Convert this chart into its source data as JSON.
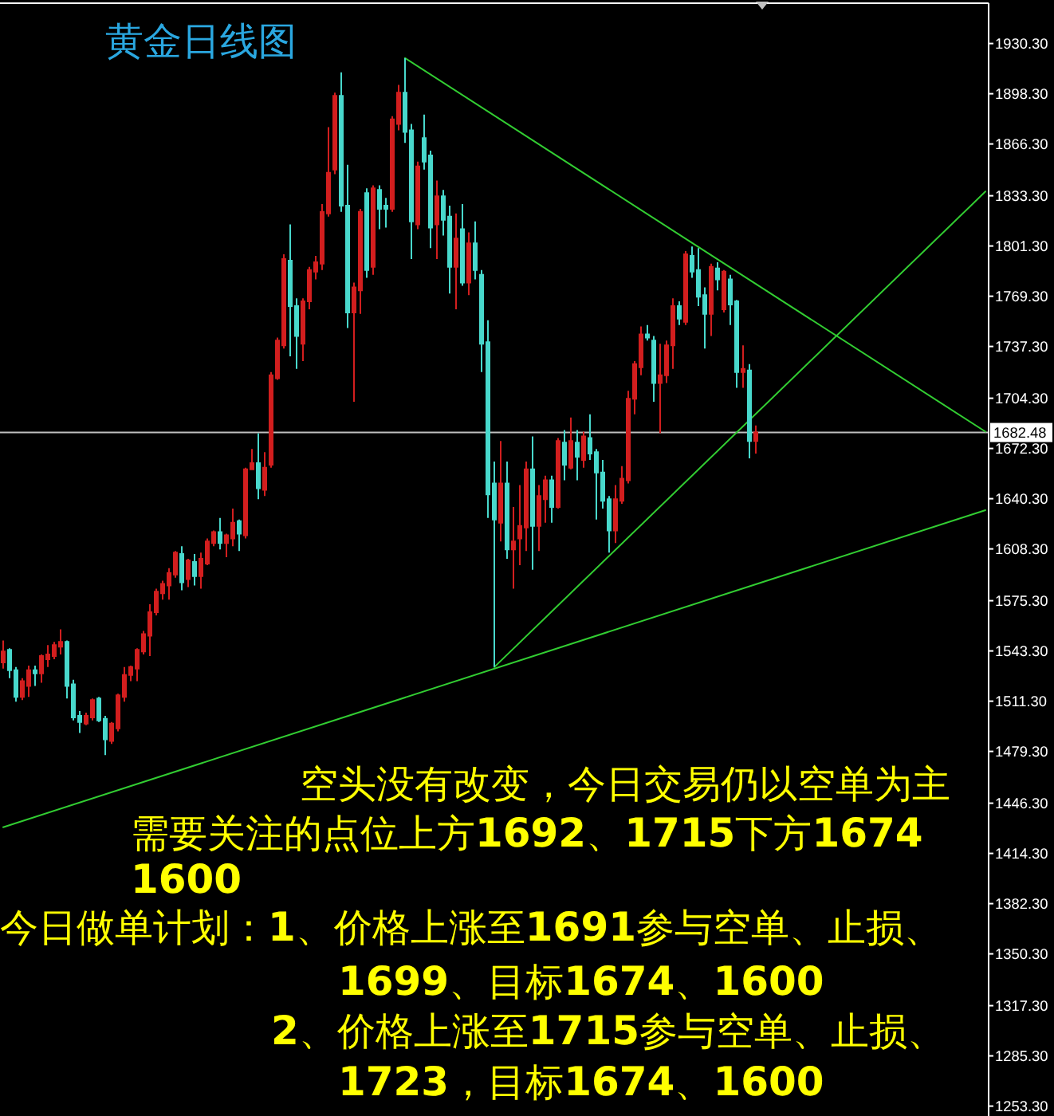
{
  "chart_data": {
    "type": "candlestick",
    "title": "黄金日线图",
    "categories": [
      null,
      null,
      null,
      null,
      null,
      null,
      null,
      null,
      null,
      null,
      null,
      null,
      null,
      null,
      null,
      null,
      null,
      null,
      null,
      null,
      null,
      null,
      null,
      null,
      null,
      null,
      null,
      null,
      null,
      null,
      null,
      null,
      null,
      null,
      null,
      null,
      null,
      null,
      null,
      null,
      null,
      null,
      null,
      null,
      null,
      null,
      null,
      null,
      null,
      null,
      null,
      null,
      null,
      null,
      null,
      null,
      null,
      null,
      null,
      null,
      null,
      null,
      null,
      null,
      null,
      null,
      null,
      null,
      null,
      null,
      null,
      null,
      null,
      null,
      null,
      null,
      null,
      null,
      null,
      null,
      null,
      null,
      null,
      null,
      null,
      null,
      null,
      null,
      null,
      null,
      null,
      null,
      null,
      null,
      null,
      null,
      null,
      null,
      null,
      null,
      null,
      null,
      null,
      null,
      null,
      null,
      null,
      null,
      null,
      null,
      null,
      null,
      null,
      null,
      null,
      null,
      null,
      null,
      null,
      null,
      null,
      null,
      null,
      null,
      null,
      null,
      null,
      null,
      null,
      null,
      null,
      null,
      null,
      null,
      null,
      null,
      null,
      null,
      null,
      null,
      null,
      null,
      null,
      null,
      null,
      null,
      null,
      null,
      null,
      null,
      null,
      null,
      null,
      null,
      null
    ],
    "ohlc": [
      [
        1536,
        1550,
        1532,
        1543
      ],
      [
        1544,
        1545,
        1526,
        1531
      ],
      [
        1531,
        1533,
        1511,
        1514
      ],
      [
        1514,
        1526,
        1512,
        1524
      ],
      [
        1521,
        1534,
        1514,
        1531
      ],
      [
        1531,
        1534,
        1521,
        1529
      ],
      [
        1529,
        1541,
        1523,
        1540
      ],
      [
        1538,
        1547,
        1533,
        1541
      ],
      [
        1540,
        1549,
        1538,
        1547
      ],
      [
        1546,
        1557,
        1541,
        1549
      ],
      [
        1549,
        1550,
        1513,
        1521
      ],
      [
        1522,
        1525,
        1499,
        1501
      ],
      [
        1502,
        1505,
        1491,
        1498
      ],
      [
        1497,
        1504,
        1496,
        1502
      ],
      [
        1501,
        1513,
        1499,
        1512
      ],
      [
        1513,
        1514,
        1498,
        1499
      ],
      [
        1500,
        1502,
        1477,
        1487
      ],
      [
        1486,
        1498,
        1484,
        1497
      ],
      [
        1494,
        1516,
        1492,
        1515
      ],
      [
        1514,
        1533,
        1511,
        1528
      ],
      [
        1528,
        1534,
        1524,
        1533
      ],
      [
        1532,
        1545,
        1524,
        1544
      ],
      [
        1543,
        1556,
        1541,
        1554
      ],
      [
        1553,
        1573,
        1540,
        1568
      ],
      [
        1568,
        1583,
        1566,
        1581
      ],
      [
        1580,
        1588,
        1576,
        1586
      ],
      [
        1585,
        1596,
        1576,
        1593
      ],
      [
        1592,
        1607,
        1590,
        1606
      ],
      [
        1605,
        1610,
        1582,
        1587
      ],
      [
        1589,
        1602,
        1584,
        1601
      ],
      [
        1600,
        1605,
        1585,
        1591
      ],
      [
        1591,
        1606,
        1583,
        1602
      ],
      [
        1599,
        1615,
        1598,
        1613
      ],
      [
        1612,
        1620,
        1610,
        1619
      ],
      [
        1619,
        1628,
        1608,
        1612
      ],
      [
        1612,
        1618,
        1603,
        1617
      ],
      [
        1615,
        1634,
        1610,
        1625
      ],
      [
        1626,
        1627,
        1607,
        1618
      ],
      [
        1617,
        1660,
        1615,
        1659
      ],
      [
        1659,
        1672,
        1659,
        1663
      ],
      [
        1663,
        1682,
        1640,
        1647
      ],
      [
        1646,
        1670,
        1642,
        1660
      ],
      [
        1662,
        1721,
        1660,
        1719
      ],
      [
        1717,
        1743,
        1716,
        1741
      ],
      [
        1738,
        1796,
        1736,
        1793
      ],
      [
        1792,
        1815,
        1731,
        1763
      ],
      [
        1763,
        1768,
        1723,
        1744
      ],
      [
        1739,
        1768,
        1728,
        1766
      ],
      [
        1766,
        1788,
        1761,
        1786
      ],
      [
        1785,
        1795,
        1780,
        1791
      ],
      [
        1790,
        1828,
        1786,
        1823
      ],
      [
        1822,
        1877,
        1820,
        1848
      ],
      [
        1850,
        1899,
        1847,
        1897
      ],
      [
        1897,
        1912,
        1823,
        1827
      ],
      [
        1827,
        1853,
        1749,
        1759
      ],
      [
        1759,
        1778,
        1702,
        1775
      ],
      [
        1773,
        1825,
        1758,
        1823
      ],
      [
        1835,
        1838,
        1781,
        1786
      ],
      [
        1788,
        1840,
        1783,
        1838
      ],
      [
        1837,
        1840,
        1812,
        1825
      ],
      [
        1827,
        1832,
        1813,
        1825
      ],
      [
        1825,
        1884,
        1823,
        1882
      ],
      [
        1879,
        1904,
        1875,
        1899
      ],
      [
        1899,
        1921,
        1867,
        1874
      ],
      [
        1875,
        1879,
        1793,
        1817
      ],
      [
        1815,
        1855,
        1812,
        1852
      ],
      [
        1870,
        1885,
        1850,
        1855
      ],
      [
        1859,
        1862,
        1800,
        1813
      ],
      [
        1815,
        1843,
        1793,
        1833
      ],
      [
        1833,
        1837,
        1808,
        1818
      ],
      [
        1820,
        1827,
        1771,
        1788
      ],
      [
        1788,
        1822,
        1761,
        1806
      ],
      [
        1812,
        1828,
        1776,
        1778
      ],
      [
        1778,
        1810,
        1770,
        1803
      ],
      [
        1803,
        1817,
        1780,
        1786
      ],
      [
        1783,
        1786,
        1721,
        1739
      ],
      [
        1740,
        1754,
        1628,
        1643
      ],
      [
        1650,
        1664,
        1533,
        1627
      ],
      [
        1625,
        1677,
        1613,
        1650
      ],
      [
        1650,
        1664,
        1602,
        1608
      ],
      [
        1608,
        1635,
        1583,
        1613
      ],
      [
        1615,
        1649,
        1598,
        1623
      ],
      [
        1622,
        1664,
        1607,
        1659
      ],
      [
        1659,
        1680,
        1595,
        1623
      ],
      [
        1623,
        1649,
        1607,
        1642
      ],
      [
        1640,
        1655,
        1625,
        1652
      ],
      [
        1652,
        1655,
        1625,
        1635
      ],
      [
        1635,
        1679,
        1634,
        1677
      ],
      [
        1676,
        1684,
        1652,
        1662
      ],
      [
        1660,
        1692,
        1659,
        1677
      ],
      [
        1676,
        1684,
        1652,
        1667
      ],
      [
        1665,
        1683,
        1660,
        1680
      ],
      [
        1679,
        1694,
        1665,
        1669
      ],
      [
        1670,
        1672,
        1627,
        1657
      ],
      [
        1657,
        1665,
        1634,
        1639
      ],
      [
        1640,
        1642,
        1606,
        1620
      ],
      [
        1620,
        1649,
        1612,
        1640
      ],
      [
        1639,
        1661,
        1637,
        1653
      ],
      [
        1652,
        1709,
        1650,
        1704
      ],
      [
        1704,
        1728,
        1694,
        1726
      ],
      [
        1724,
        1750,
        1719,
        1745
      ],
      [
        1745,
        1751,
        1741,
        1743
      ],
      [
        1741,
        1744,
        1702,
        1714
      ],
      [
        1714,
        1739,
        1682,
        1719
      ],
      [
        1719,
        1741,
        1714,
        1738
      ],
      [
        1738,
        1768,
        1723,
        1763
      ],
      [
        1763,
        1766,
        1751,
        1755
      ],
      [
        1753,
        1798,
        1751,
        1796
      ],
      [
        1795,
        1801,
        1781,
        1785
      ],
      [
        1786,
        1800,
        1763,
        1769
      ],
      [
        1770,
        1775,
        1736,
        1758
      ],
      [
        1758,
        1790,
        1744,
        1788
      ],
      [
        1787,
        1791,
        1773,
        1780
      ],
      [
        1761,
        1786,
        1759,
        1785
      ],
      [
        1780,
        1783,
        1751,
        1764
      ],
      [
        1766,
        1767,
        1711,
        1721
      ],
      [
        1721,
        1738,
        1711,
        1723
      ],
      [
        1722,
        1726,
        1666,
        1677
      ],
      [
        1677,
        1687,
        1669,
        1682.48
      ],
      null,
      null,
      null,
      null,
      null,
      null,
      null,
      null,
      null,
      null,
      null,
      null,
      null,
      null,
      null,
      null,
      null,
      null,
      null,
      null,
      null,
      null,
      null,
      null,
      null,
      null,
      null,
      null,
      null,
      null,
      null,
      null,
      null,
      null,
      null,
      null
    ],
    "colors": [
      "#d21e1e",
      "#48d8cc",
      "#48d8cc",
      "#d21e1e",
      "#d21e1e",
      "#48d8cc",
      "#d21e1e",
      "#d21e1e",
      "#d21e1e",
      "#d21e1e",
      "#48d8cc",
      "#48d8cc",
      "#48d8cc",
      "#d21e1e",
      "#d21e1e",
      "#48d8cc",
      "#48d8cc",
      "#d21e1e",
      "#d21e1e",
      "#d21e1e",
      "#d21e1e",
      "#d21e1e",
      "#d21e1e",
      "#d21e1e",
      "#d21e1e",
      "#d21e1e",
      "#d21e1e",
      "#d21e1e",
      "#48d8cc",
      "#d21e1e",
      "#48d8cc",
      "#d21e1e",
      "#d21e1e",
      "#d21e1e",
      "#48d8cc",
      "#d21e1e",
      "#d21e1e",
      "#48d8cc",
      "#d21e1e",
      "#d21e1e",
      "#48d8cc",
      "#d21e1e",
      "#d21e1e",
      "#d21e1e",
      "#d21e1e",
      "#48d8cc",
      "#48d8cc",
      "#d21e1e",
      "#d21e1e",
      "#d21e1e",
      "#d21e1e",
      "#d21e1e",
      "#d21e1e",
      "#48d8cc",
      "#48d8cc",
      "#d21e1e",
      "#d21e1e",
      "#48d8cc",
      "#d21e1e",
      "#48d8cc",
      "#48d8cc",
      "#d21e1e",
      "#d21e1e",
      "#48d8cc",
      "#48d8cc",
      "#d21e1e",
      "#48d8cc",
      "#48d8cc",
      "#d21e1e",
      "#48d8cc",
      "#48d8cc",
      "#d21e1e",
      "#48d8cc",
      "#d21e1e",
      "#48d8cc",
      "#48d8cc",
      "#48d8cc",
      "#48d8cc",
      "#d21e1e",
      "#48d8cc",
      "#d21e1e",
      "#d21e1e",
      "#d21e1e",
      "#48d8cc",
      "#d21e1e",
      "#d21e1e",
      "#48d8cc",
      "#d21e1e",
      "#48d8cc",
      "#d21e1e",
      "#48d8cc",
      "#d21e1e",
      "#48d8cc",
      "#48d8cc",
      "#48d8cc",
      "#48d8cc",
      "#d21e1e",
      "#d21e1e",
      "#d21e1e",
      "#d21e1e",
      "#d21e1e",
      "#48d8cc",
      "#48d8cc",
      "#d21e1e",
      "#d21e1e",
      "#d21e1e",
      "#48d8cc",
      "#d21e1e",
      "#48d8cc",
      "#48d8cc",
      "#48d8cc",
      "#d21e1e",
      "#48d8cc",
      "#d21e1e",
      "#48d8cc",
      "#48d8cc",
      "#d21e1e",
      "#48d8cc",
      "#d21e1e",
      null,
      null,
      null,
      null,
      null,
      null,
      null,
      null,
      null,
      null,
      null,
      null,
      null,
      null,
      null,
      null,
      null,
      null,
      null,
      null,
      null,
      null,
      null,
      null,
      null,
      null,
      null,
      null,
      null,
      null,
      null,
      null,
      null,
      null,
      null,
      null
    ],
    "series": [
      {
        "type": "line",
        "color": "#32cd32",
        "values": [
          1431,
          null,
          null,
          null,
          null,
          null,
          null,
          null,
          null,
          null,
          null,
          null,
          null,
          null,
          null,
          null,
          null,
          null,
          null,
          null,
          null,
          null,
          null,
          null,
          null,
          null,
          null,
          null,
          null,
          null,
          null,
          null,
          null,
          null,
          null,
          null,
          null,
          null,
          null,
          null,
          null,
          null,
          null,
          null,
          null,
          null,
          null,
          null,
          null,
          null,
          null,
          null,
          null,
          null,
          null,
          null,
          null,
          null,
          null,
          null,
          null,
          null,
          null,
          null,
          null,
          null,
          null,
          null,
          null,
          null,
          null,
          null,
          null,
          null,
          null,
          null,
          null,
          null,
          null,
          null,
          null,
          null,
          null,
          null,
          null,
          null,
          null,
          null,
          null,
          null,
          null,
          null,
          null,
          null,
          null,
          null,
          null,
          null,
          null,
          null,
          null,
          null,
          null,
          null,
          null,
          null,
          null,
          null,
          null,
          null,
          null,
          null,
          null,
          null,
          null,
          null,
          null,
          null,
          null,
          null,
          null,
          null,
          null,
          null,
          null,
          null,
          null,
          null,
          null,
          null,
          null,
          null,
          null,
          null,
          null,
          null,
          null,
          null,
          null,
          null,
          null,
          null,
          null,
          null,
          null,
          null,
          null,
          null,
          null,
          null,
          null,
          null,
          null,
          null,
          1633
        ]
      },
      {
        "type": "line",
        "color": "#32cd32",
        "values": [
          null,
          null,
          null,
          null,
          null,
          null,
          null,
          null,
          null,
          null,
          null,
          null,
          null,
          null,
          null,
          null,
          null,
          null,
          null,
          null,
          null,
          null,
          null,
          null,
          null,
          null,
          null,
          null,
          null,
          null,
          null,
          null,
          null,
          null,
          null,
          null,
          null,
          null,
          null,
          null,
          null,
          null,
          null,
          null,
          null,
          null,
          null,
          null,
          null,
          null,
          null,
          null,
          null,
          null,
          null,
          null,
          null,
          null,
          null,
          null,
          null,
          null,
          null,
          1921,
          null,
          null,
          null,
          null,
          null,
          null,
          null,
          null,
          null,
          null,
          null,
          null,
          null,
          null,
          null,
          null,
          null,
          null,
          null,
          null,
          null,
          null,
          null,
          null,
          null,
          null,
          null,
          null,
          null,
          null,
          null,
          null,
          null,
          null,
          null,
          null,
          null,
          null,
          null,
          null,
          null,
          null,
          null,
          null,
          null,
          null,
          null,
          null,
          null,
          null,
          null,
          null,
          null,
          null,
          null,
          null,
          null,
          null,
          null,
          null,
          null,
          null,
          null,
          null,
          null,
          null,
          null,
          null,
          null,
          null,
          null,
          null,
          null,
          null,
          null,
          null,
          null,
          null,
          null,
          null,
          null,
          null,
          null,
          null,
          null,
          null,
          null,
          null,
          null,
          null,
          1683
        ]
      },
      {
        "type": "line",
        "color": "#32cd32",
        "values": [
          null,
          null,
          null,
          null,
          null,
          null,
          null,
          null,
          null,
          null,
          null,
          null,
          null,
          null,
          null,
          null,
          null,
          null,
          null,
          null,
          null,
          null,
          null,
          null,
          null,
          null,
          null,
          null,
          null,
          null,
          null,
          null,
          null,
          null,
          null,
          null,
          null,
          null,
          null,
          null,
          null,
          null,
          null,
          null,
          null,
          null,
          null,
          null,
          null,
          null,
          null,
          null,
          null,
          null,
          null,
          null,
          null,
          null,
          null,
          null,
          null,
          null,
          null,
          null,
          null,
          null,
          null,
          null,
          null,
          null,
          null,
          null,
          null,
          null,
          null,
          null,
          null,
          1533,
          null,
          null,
          null,
          null,
          null,
          null,
          null,
          null,
          null,
          null,
          null,
          null,
          null,
          null,
          null,
          null,
          null,
          null,
          null,
          null,
          null,
          null,
          null,
          null,
          null,
          null,
          null,
          null,
          null,
          null,
          null,
          null,
          null,
          null,
          null,
          null,
          null,
          null,
          null,
          null,
          null,
          null,
          null,
          null,
          null,
          null,
          null,
          null,
          null,
          null,
          null,
          null,
          null,
          null,
          null,
          null,
          null,
          null,
          null,
          null,
          null,
          null,
          null,
          null,
          null,
          null,
          null,
          null,
          null,
          null,
          null,
          null,
          null,
          null,
          null,
          null,
          1836
        ]
      }
    ],
    "ylim": [
      1247,
      1956
    ],
    "yticks": [
      {
        "value": 1930.3,
        "label": "1930.30"
      },
      {
        "value": 1898.3,
        "label": "1898.30"
      },
      {
        "value": 1866.3,
        "label": "1866.30"
      },
      {
        "value": 1833.3,
        "label": "1833.30"
      },
      {
        "value": 1801.3,
        "label": "1801.30"
      },
      {
        "value": 1769.3,
        "label": "1769.30"
      },
      {
        "value": 1737.3,
        "label": "1737.30"
      },
      {
        "value": 1704.3,
        "label": "1704.30"
      },
      {
        "value": 1672.3,
        "label": "1672.30"
      },
      {
        "value": 1640.3,
        "label": "1640.30"
      },
      {
        "value": 1608.3,
        "label": "1608.30"
      },
      {
        "value": 1575.3,
        "label": "1575.30"
      },
      {
        "value": 1543.3,
        "label": "1543.30"
      },
      {
        "value": 1511.3,
        "label": "1511.30"
      },
      {
        "value": 1479.3,
        "label": "1479.30"
      },
      {
        "value": 1446.3,
        "label": "1446.30"
      },
      {
        "value": 1414.3,
        "label": "1414.30"
      },
      {
        "value": 1382.3,
        "label": "1382.30"
      },
      {
        "value": 1350.3,
        "label": "1350.30"
      },
      {
        "value": 1317.3,
        "label": "1317.30"
      },
      {
        "value": 1285.3,
        "label": "1285.30"
      },
      {
        "value": 1253.3,
        "label": "1253.30"
      }
    ],
    "ref_lines": [
      {
        "axis": "y",
        "value": 1682.48,
        "label": "1682.48",
        "color": "#c0c0c0"
      }
    ],
    "tick_labels": "y",
    "annotations": [
      "空头没有改变，今日交易仍以空单为主",
      "需要关注的点位上方1692、1715下方1674",
      "1600",
      "今日做单计划：1、价格上涨至1691参与空单、止损、",
      "1699、目标1674、1600",
      "2、价格上涨至1715参与空单、止损、",
      "1723，目标1674、1600"
    ]
  }
}
